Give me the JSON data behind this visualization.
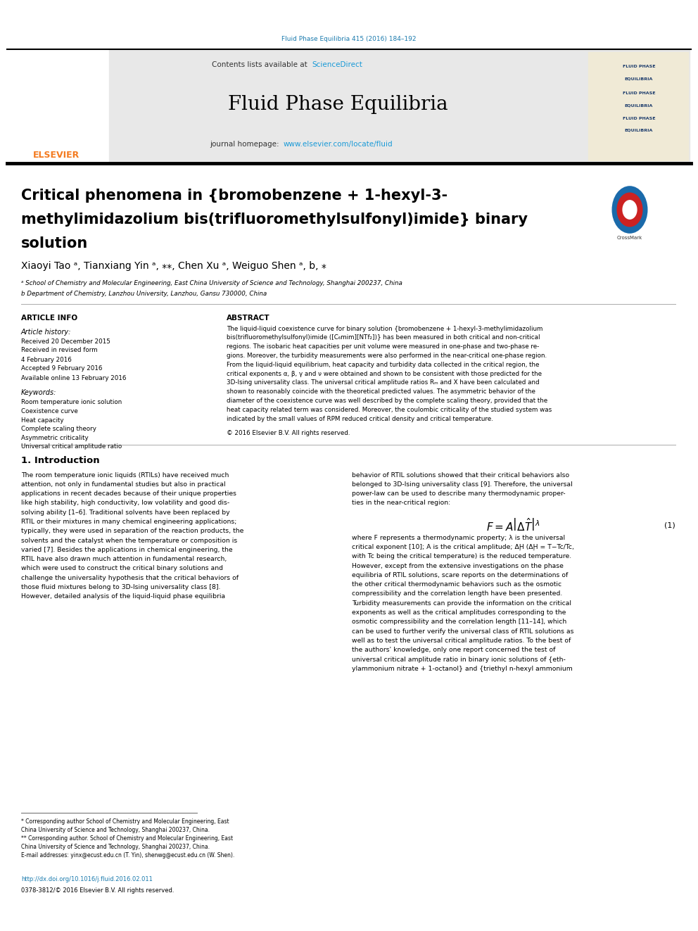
{
  "background_color": "#ffffff",
  "page_width": 9.92,
  "page_height": 13.23,
  "journal_ref_text": "Fluid Phase Equilibria 415 (2016) 184–192",
  "journal_ref_color": "#1a7aad",
  "header_bg_color": "#e8e8e8",
  "contents_text": "Contents lists available at ",
  "sciencedirect_color": "#1a9ad7",
  "journal_title": "Fluid Phase Equilibria",
  "journal_url": "www.elsevier.com/locate/fluid",
  "journal_url_color": "#1a9ad7",
  "elsevier_color": "#f47b20",
  "paper_title_line1": "Critical phenomena in {bromobenzene + 1-hexyl-3-",
  "paper_title_line2": "methylimidazolium bis(trifluoromethylsulfonyl)imide} binary",
  "paper_title_line3": "solution",
  "authors_line": "Xiaoyi Tao ᵃ, Tianxiang Yin ᵃ, ⁎⁎, Chen Xu ᵃ, Weiguo Shen ᵃ, b, ⁎",
  "affil_a": "ᵃ School of Chemistry and Molecular Engineering, East China University of Science and Technology, Shanghai 200237, China",
  "affil_b": "b Department of Chemistry, Lanzhou University, Lanzhou, Gansu 730000, China",
  "keywords": [
    "Room temperature ionic solution",
    "Coexistence curve",
    "Heat capacity",
    "Complete scaling theory",
    "Asymmetric criticality",
    "Universal critical amplitude ratio"
  ],
  "abstract_lines": [
    "The liquid-liquid coexistence curve for binary solution {bromobenzene + 1-hexyl-3-methylimidazolium",
    "bis(trifluoromethylsulfonyl)imide ([C₆mim][NTf₂])} has been measured in both critical and non-critical",
    "regions. The isobaric heat capacities per unit volume were measured in one-phase and two-phase re-",
    "gions. Moreover, the turbidity measurements were also performed in the near-critical one-phase region.",
    "From the liquid-liquid equilibrium, heat capacity and turbidity data collected in the critical region, the",
    "critical exponents α, β, γ and ν were obtained and shown to be consistent with those predicted for the",
    "3D-Ising universality class. The universal critical amplitude ratios Rₘ and X have been calculated and",
    "shown to reasonably coincide with the theoretical predicted values. The asymmetric behavior of the",
    "diameter of the coexistence curve was well described by the complete scaling theory, provided that the",
    "heat capacity related term was considered. Moreover, the coulombic criticality of the studied system was",
    "indicated by the small values of RPM reduced critical density and critical temperature."
  ],
  "copyright": "© 2016 Elsevier B.V. All rights reserved.",
  "intro_left_lines": [
    "The room temperature ionic liquids (RTILs) have received much",
    "attention, not only in fundamental studies but also in practical",
    "applications in recent decades because of their unique properties",
    "like high stability, high conductivity, low volatility and good dis-",
    "solving ability [1–6]. Traditional solvents have been replaced by",
    "RTIL or their mixtures in many chemical engineering applications;",
    "typically, they were used in separation of the reaction products, the",
    "solvents and the catalyst when the temperature or composition is",
    "varied [7]. Besides the applications in chemical engineering, the",
    "RTIL have also drawn much attention in fundamental research,",
    "which were used to construct the critical binary solutions and",
    "challenge the universality hypothesis that the critical behaviors of",
    "those fluid mixtures belong to 3D-Ising universality class [8].",
    "However, detailed analysis of the liquid-liquid phase equilibria"
  ],
  "intro_right_lines_before_eq": [
    "behavior of RTIL solutions showed that their critical behaviors also",
    "belonged to 3D-Ising universality class [9]. Therefore, the universal",
    "power-law can be used to describe many thermodynamic proper-",
    "ties in the near-critical region:"
  ],
  "intro_right_lines_after_eq": [
    "where F represents a thermodynamic property; λ is the universal",
    "critical exponent [10]; A is the critical amplitude; ΔḨ (ΔḨ = T−Tc/Tc,",
    "with Tc being the critical temperature) is the reduced temperature.",
    "However, except from the extensive investigations on the phase",
    "equilibria of RTIL solutions, scare reports on the determinations of",
    "the other critical thermodynamic behaviors such as the osmotic",
    "compressibility and the correlation length have been presented.",
    "Turbidity measurements can provide the information on the critical",
    "exponents as well as the critical amplitudes corresponding to the",
    "osmotic compressibility and the correlation length [11–14], which",
    "can be used to further verify the universal class of RTIL solutions as",
    "well as to test the universal critical amplitude ratios. To the best of",
    "the authors' knowledge, only one report concerned the test of",
    "universal critical amplitude ratio in binary ionic solutions of {eth-",
    "ylammonium nitrate + 1-octanol} and {triethyl n-hexyl ammonium"
  ],
  "footer_lines": [
    "* Corresponding author School of Chemistry and Molecular Engineering, East",
    "China University of Science and Technology, Shanghai 200237, China.",
    "** Corresponding author. School of Chemistry and Molecular Engineering, East",
    "China University of Science and Technology, Shanghai 200237, China.",
    "E-mail addresses: yinx@ecust.edu.cn (T. Yin), shenwg@ecust.edu.cn (W. Shen)."
  ],
  "doi_text": "http://dx.doi.org/10.1016/j.fluid.2016.02.011",
  "issn_text": "0378-3812/© 2016 Elsevier B.V. All rights reserved.",
  "doi_color": "#1a7aad",
  "cover_lines": [
    "FLUID PHASE",
    "EQUILIBRIA",
    "FLUID PHASE",
    "EQUILIBRIA",
    "FLUID PHASE",
    "EQUILIBRIA"
  ]
}
